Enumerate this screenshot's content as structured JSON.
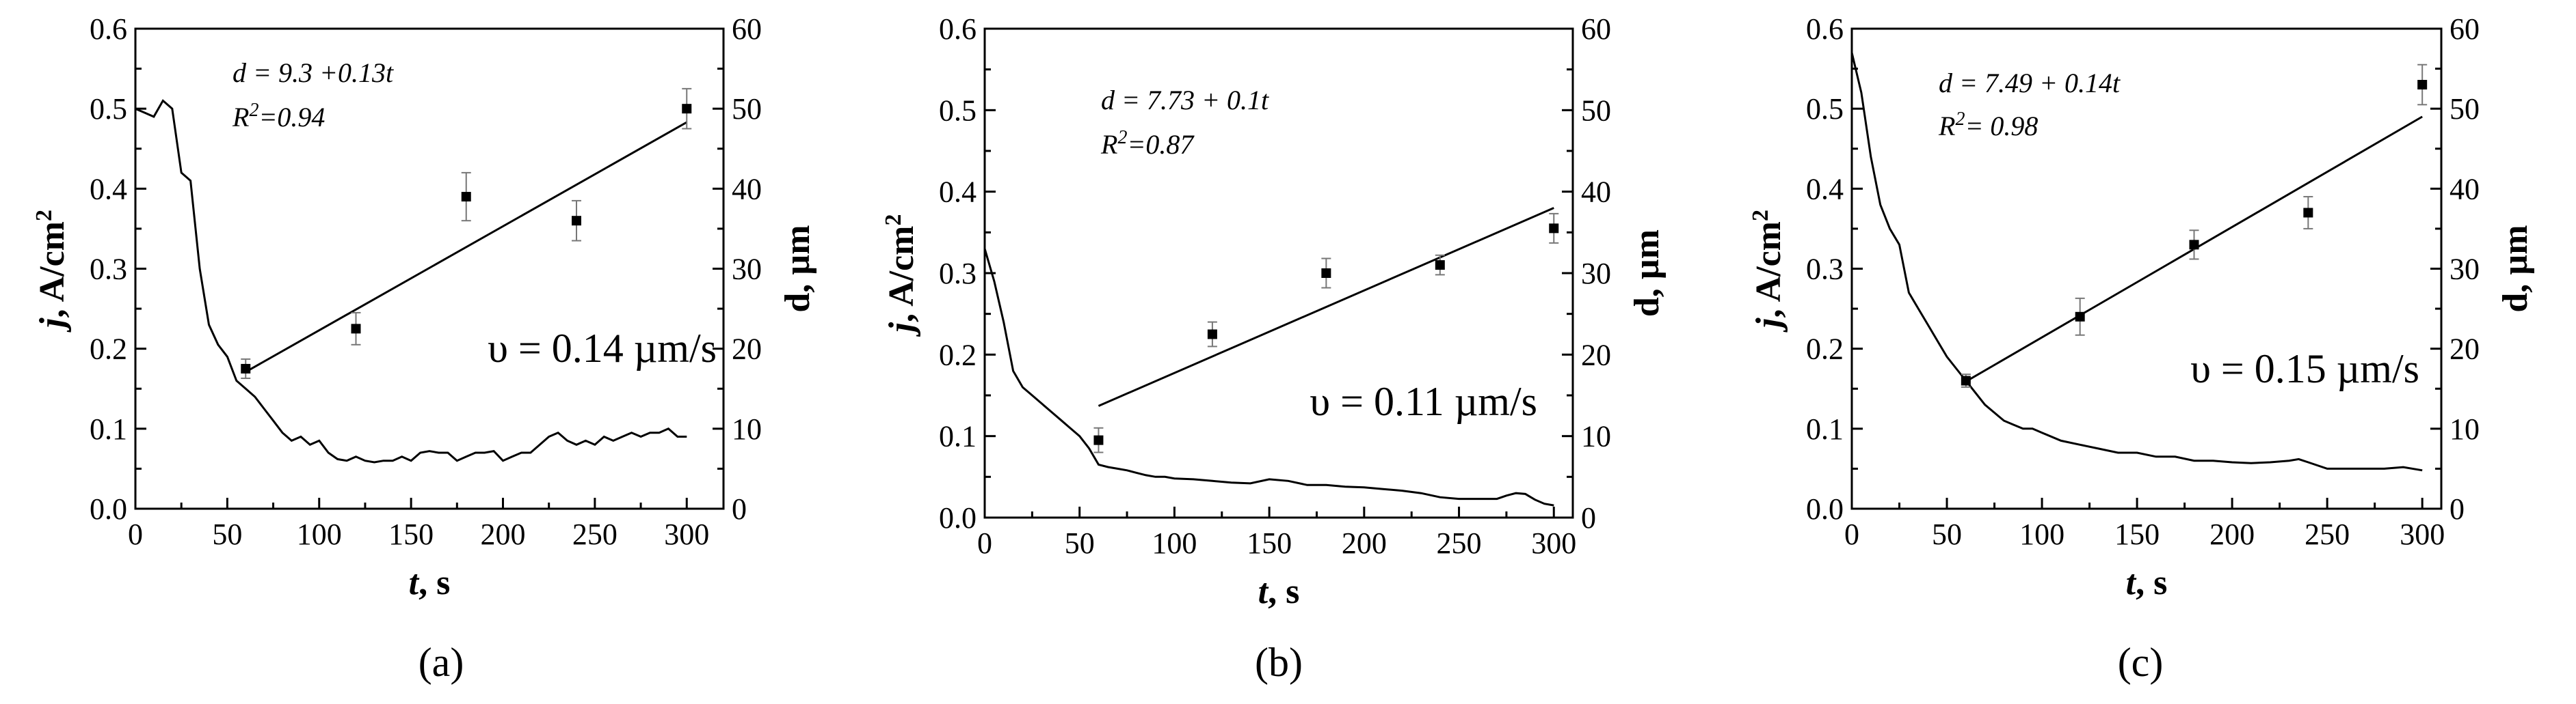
{
  "chart_data": [
    {
      "type": "line",
      "panel_label": "(a)",
      "xlabel": {
        "symbol": "t",
        "unit": ", s"
      },
      "ylabel_left": {
        "symbol": "j",
        "unit": ", A/cm",
        "sup": "2"
      },
      "ylabel_right": "d, µm",
      "xlim": [
        0,
        320
      ],
      "xticks": [
        "0",
        "50",
        "100",
        "150",
        "200",
        "250",
        "300"
      ],
      "ylim_left": [
        0,
        0.6
      ],
      "yticks_left": [
        "0.0",
        "0.1",
        "0.2",
        "0.3",
        "0.4",
        "0.5",
        "0.6"
      ],
      "ylim_right": [
        0,
        60
      ],
      "yticks_right": [
        "0",
        "10",
        "20",
        "30",
        "40",
        "50",
        "60"
      ],
      "equation": "d = 9.3 +0.13t",
      "r2": {
        "prefix": "R",
        "sup": "2",
        "rest": "=0.94"
      },
      "rate_label": "υ = 0.14 µm/s",
      "current": {
        "x": [
          0,
          5,
          10,
          15,
          20,
          25,
          30,
          35,
          40,
          45,
          50,
          55,
          60,
          65,
          70,
          75,
          80,
          85,
          90,
          95,
          100,
          105,
          110,
          115,
          120,
          125,
          130,
          135,
          140,
          145,
          150,
          155,
          160,
          165,
          170,
          175,
          180,
          185,
          190,
          195,
          200,
          205,
          210,
          215,
          220,
          225,
          230,
          235,
          240,
          245,
          250,
          255,
          260,
          265,
          270,
          275,
          280,
          285,
          290,
          295,
          300
        ],
        "y": [
          0.5,
          0.495,
          0.49,
          0.51,
          0.5,
          0.42,
          0.41,
          0.3,
          0.23,
          0.205,
          0.19,
          0.16,
          0.15,
          0.14,
          0.125,
          0.11,
          0.095,
          0.085,
          0.09,
          0.08,
          0.085,
          0.07,
          0.062,
          0.06,
          0.065,
          0.06,
          0.058,
          0.06,
          0.06,
          0.065,
          0.06,
          0.07,
          0.072,
          0.07,
          0.07,
          0.06,
          0.065,
          0.07,
          0.07,
          0.072,
          0.06,
          0.065,
          0.07,
          0.07,
          0.08,
          0.09,
          0.095,
          0.085,
          0.08,
          0.085,
          0.08,
          0.09,
          0.085,
          0.09,
          0.095,
          0.09,
          0.095,
          0.095,
          0.1,
          0.09,
          0.09
        ]
      },
      "thickness": {
        "x": [
          60,
          120,
          180,
          240,
          300
        ],
        "y": [
          17.5,
          22.5,
          39,
          36,
          50
        ],
        "err": [
          1.2,
          2,
          3,
          2.5,
          2.5
        ]
      },
      "fit": {
        "x": [
          60,
          300
        ],
        "y": [
          17.1,
          48.3
        ]
      }
    },
    {
      "type": "line",
      "panel_label": "(b)",
      "xlabel": {
        "symbol": "t",
        "unit": ", s"
      },
      "ylabel_left": {
        "symbol": "j",
        "unit": ", A/cm",
        "sup": "2"
      },
      "ylabel_right": "d, µm",
      "xlim": [
        0,
        310
      ],
      "xticks": [
        "0",
        "50",
        "100",
        "150",
        "200",
        "250",
        "300"
      ],
      "ylim_left": [
        0,
        0.6
      ],
      "yticks_left": [
        "0.0",
        "0.1",
        "0.2",
        "0.3",
        "0.4",
        "0.5",
        "0.6"
      ],
      "ylim_right": [
        0,
        60
      ],
      "yticks_right": [
        "0",
        "10",
        "20",
        "30",
        "40",
        "50",
        "60"
      ],
      "equation": "d = 7.73 + 0.1t",
      "r2": {
        "prefix": "R",
        "sup": "2",
        "rest": "=0.87"
      },
      "rate_label": "υ = 0.11 µm/s",
      "current": {
        "x": [
          0,
          5,
          10,
          15,
          20,
          25,
          30,
          35,
          40,
          45,
          50,
          55,
          60,
          65,
          70,
          75,
          80,
          85,
          90,
          95,
          100,
          110,
          120,
          130,
          140,
          150,
          160,
          170,
          180,
          190,
          200,
          210,
          220,
          230,
          240,
          250,
          260,
          270,
          275,
          280,
          285,
          290,
          295,
          300
        ],
        "y": [
          0.33,
          0.29,
          0.24,
          0.18,
          0.16,
          0.15,
          0.14,
          0.13,
          0.12,
          0.11,
          0.1,
          0.085,
          0.065,
          0.062,
          0.06,
          0.058,
          0.055,
          0.052,
          0.05,
          0.05,
          0.048,
          0.047,
          0.045,
          0.043,
          0.042,
          0.047,
          0.045,
          0.04,
          0.04,
          0.038,
          0.037,
          0.035,
          0.033,
          0.03,
          0.025,
          0.023,
          0.023,
          0.023,
          0.027,
          0.03,
          0.029,
          0.022,
          0.017,
          0.015
        ]
      },
      "thickness": {
        "x": [
          60,
          120,
          180,
          240,
          300
        ],
        "y": [
          9.5,
          22.5,
          30,
          31,
          35.5
        ],
        "err": [
          1.5,
          1.5,
          1.8,
          1.2,
          1.8
        ]
      },
      "fit": {
        "x": [
          60,
          300
        ],
        "y": [
          13.7,
          38
        ]
      }
    },
    {
      "type": "line",
      "panel_label": "(c)",
      "xlabel": {
        "symbol": "t",
        "unit": ", s"
      },
      "ylabel_left": {
        "symbol": "j",
        "unit": ", A/cm",
        "sup": "2"
      },
      "ylabel_right": "d, µm",
      "xlim": [
        0,
        310
      ],
      "xticks": [
        "0",
        "50",
        "100",
        "150",
        "200",
        "250",
        "300"
      ],
      "ylim_left": [
        0,
        0.6
      ],
      "yticks_left": [
        "0.0",
        "0.1",
        "0.2",
        "0.3",
        "0.4",
        "0.5",
        "0.6"
      ],
      "ylim_right": [
        0,
        60
      ],
      "yticks_right": [
        "0",
        "10",
        "20",
        "30",
        "40",
        "50",
        "60"
      ],
      "equation": "d = 7.49 + 0.14t",
      "r2": {
        "prefix": "R",
        "sup": "2",
        "rest": "= 0.98"
      },
      "rate_label": "υ = 0.15 µm/s",
      "current": {
        "x": [
          0,
          5,
          10,
          15,
          20,
          25,
          30,
          35,
          40,
          45,
          50,
          55,
          60,
          65,
          70,
          75,
          80,
          85,
          90,
          95,
          100,
          110,
          120,
          130,
          140,
          150,
          160,
          170,
          180,
          190,
          200,
          210,
          220,
          230,
          235,
          240,
          250,
          260,
          270,
          280,
          290,
          300
        ],
        "y": [
          0.57,
          0.52,
          0.44,
          0.38,
          0.35,
          0.33,
          0.27,
          0.25,
          0.23,
          0.21,
          0.19,
          0.175,
          0.16,
          0.145,
          0.13,
          0.12,
          0.11,
          0.105,
          0.1,
          0.1,
          0.095,
          0.085,
          0.08,
          0.075,
          0.07,
          0.07,
          0.065,
          0.065,
          0.06,
          0.06,
          0.058,
          0.057,
          0.058,
          0.06,
          0.062,
          0.058,
          0.05,
          0.05,
          0.05,
          0.05,
          0.052,
          0.048
        ]
      },
      "thickness": {
        "x": [
          60,
          120,
          180,
          240,
          300
        ],
        "y": [
          16,
          24,
          33,
          37,
          53
        ],
        "err": [
          0.8,
          2.3,
          1.8,
          2,
          2.5
        ]
      },
      "fit": {
        "x": [
          60,
          300
        ],
        "y": [
          15.9,
          49
        ]
      }
    }
  ]
}
